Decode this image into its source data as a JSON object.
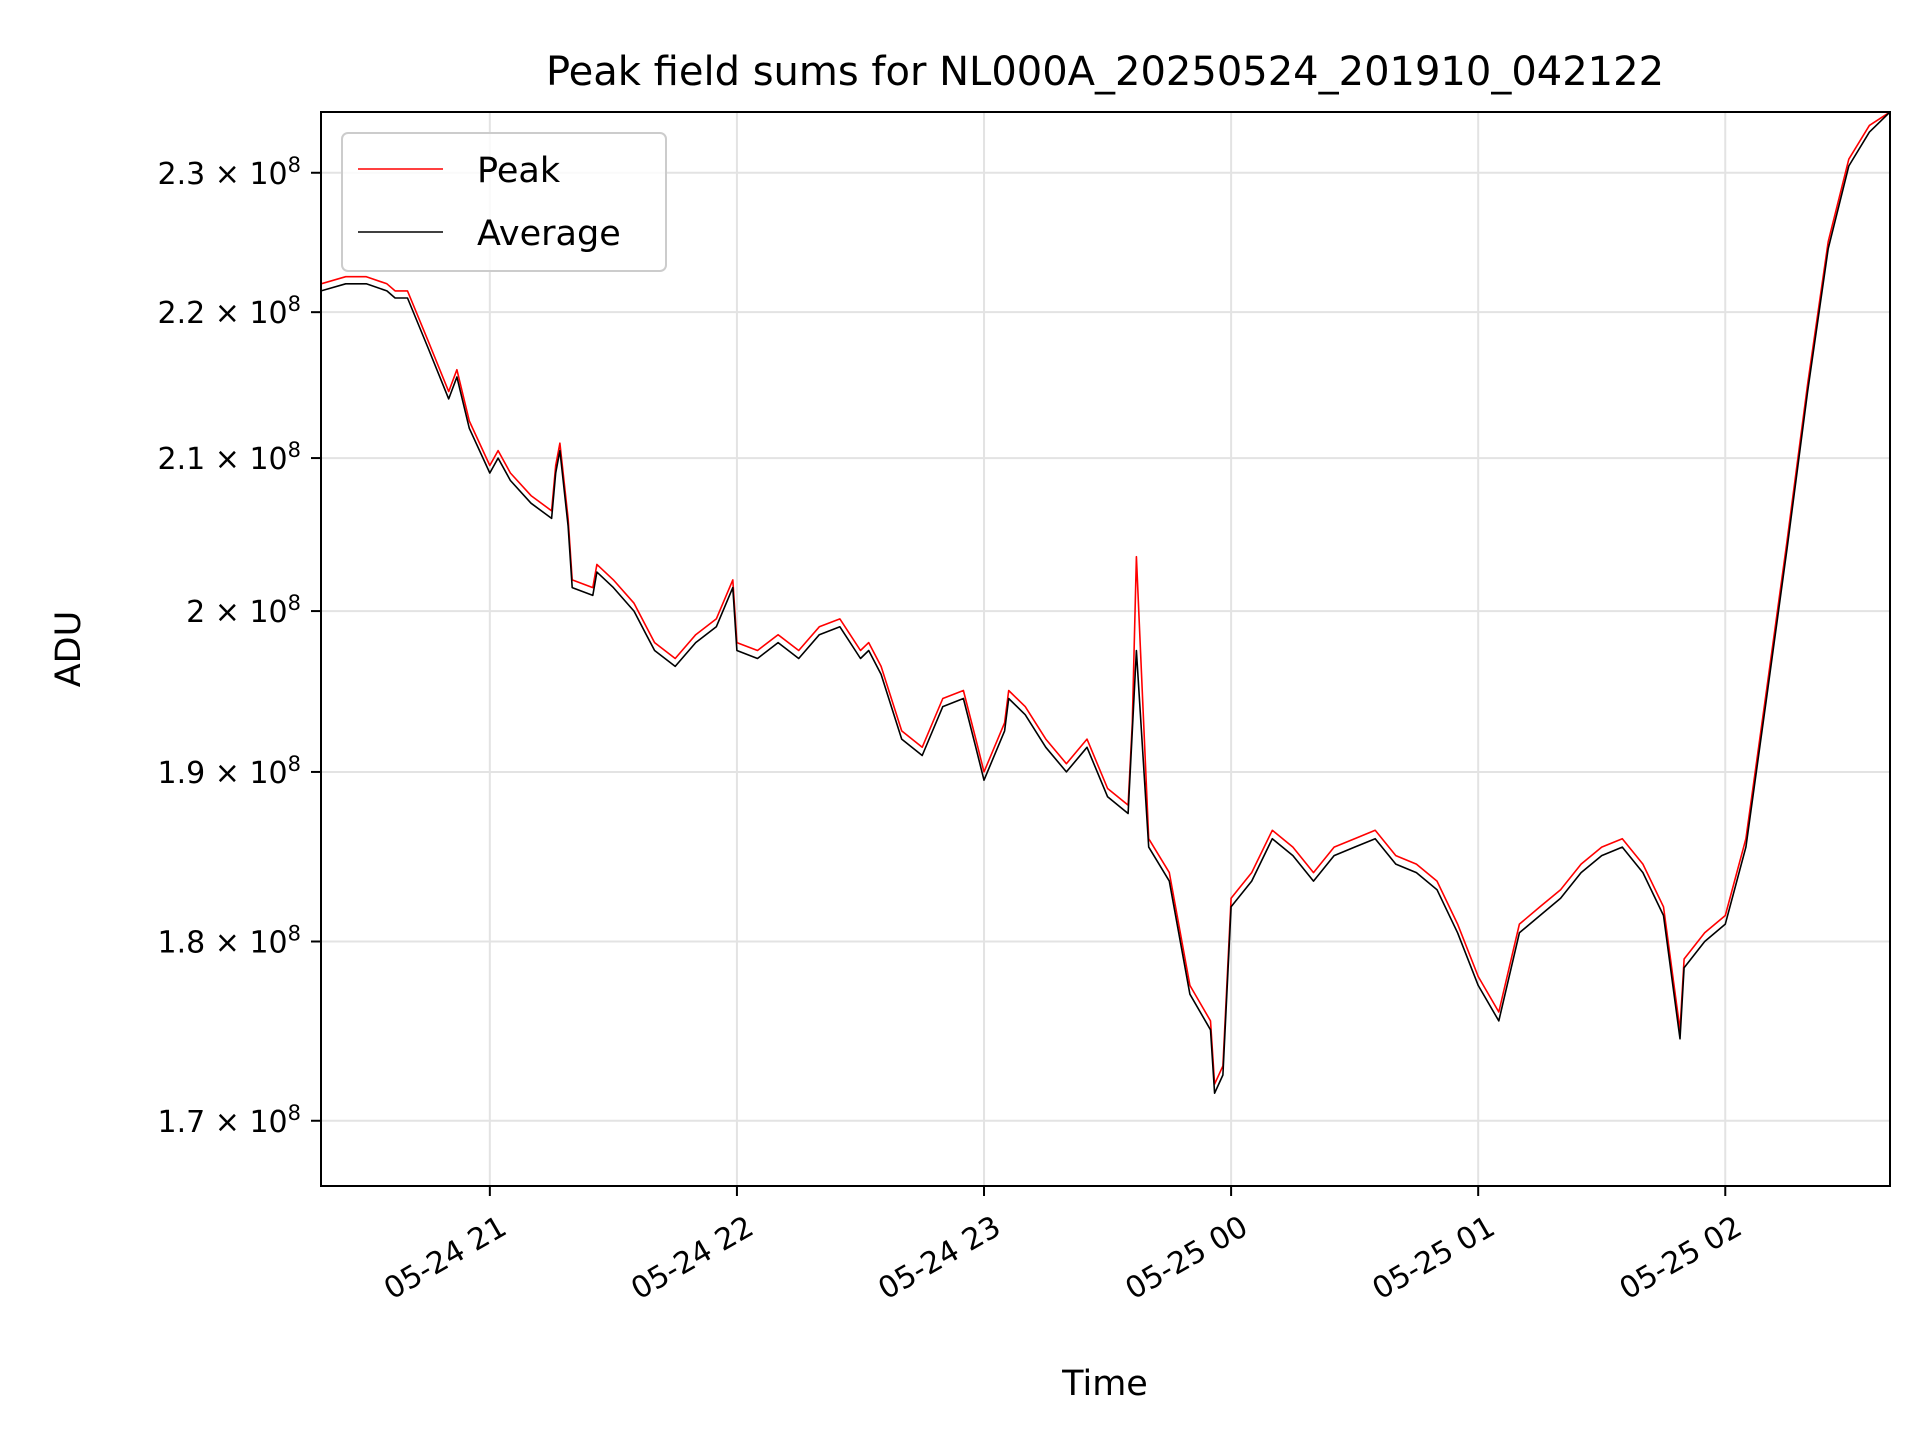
{
  "chart_data": {
    "type": "line",
    "title": "Peak field sums for NL000A_20250524_201910_042122",
    "xlabel": "Time",
    "ylabel": "ADU",
    "y_scale": "log",
    "grid": true,
    "legend_placement": "upper-left",
    "xlim": [
      "2025-05-24 20:19",
      "2025-05-25 02:40"
    ],
    "ylim": [
      166500000,
      234500000
    ],
    "x_ticks": [
      {
        "label": "05-24 21",
        "time": "2025-05-24 21:00"
      },
      {
        "label": "05-24 22",
        "time": "2025-05-24 22:00"
      },
      {
        "label": "05-24 23",
        "time": "2025-05-24 23:00"
      },
      {
        "label": "05-25 00",
        "time": "2025-05-25 00:00"
      },
      {
        "label": "05-25 01",
        "time": "2025-05-25 01:00"
      },
      {
        "label": "05-25 02",
        "time": "2025-05-25 02:00"
      }
    ],
    "y_ticks": [
      {
        "mantissa": "1.7",
        "exp": "8",
        "value": 170000000
      },
      {
        "mantissa": "1.8",
        "exp": "8",
        "value": 180000000
      },
      {
        "mantissa": "1.9",
        "exp": "8",
        "value": 190000000
      },
      {
        "mantissa": "2",
        "exp": "8",
        "value": 200000000
      },
      {
        "mantissa": "2.1",
        "exp": "8",
        "value": 210000000
      },
      {
        "mantissa": "2.2",
        "exp": "8",
        "value": 220000000
      },
      {
        "mantissa": "2.3",
        "exp": "8",
        "value": 230000000
      }
    ],
    "x": [
      "2025-05-24 20:19",
      "2025-05-24 20:25",
      "2025-05-24 20:30",
      "2025-05-24 20:35",
      "2025-05-24 20:37",
      "2025-05-24 20:40",
      "2025-05-24 20:45",
      "2025-05-24 20:50",
      "2025-05-24 20:52",
      "2025-05-24 20:55",
      "2025-05-24 21:00",
      "2025-05-24 21:02",
      "2025-05-24 21:05",
      "2025-05-24 21:10",
      "2025-05-24 21:15",
      "2025-05-24 21:16",
      "2025-05-24 21:17",
      "2025-05-24 21:19",
      "2025-05-24 21:20",
      "2025-05-24 21:25",
      "2025-05-24 21:26",
      "2025-05-24 21:30",
      "2025-05-24 21:35",
      "2025-05-24 21:38",
      "2025-05-24 21:40",
      "2025-05-24 21:45",
      "2025-05-24 21:50",
      "2025-05-24 21:55",
      "2025-05-24 21:59",
      "2025-05-24 22:00",
      "2025-05-24 22:05",
      "2025-05-24 22:10",
      "2025-05-24 22:15",
      "2025-05-24 22:20",
      "2025-05-24 22:25",
      "2025-05-24 22:30",
      "2025-05-24 22:32",
      "2025-05-24 22:35",
      "2025-05-24 22:40",
      "2025-05-24 22:45",
      "2025-05-24 22:50",
      "2025-05-24 22:55",
      "2025-05-24 22:58",
      "2025-05-24 23:00",
      "2025-05-24 23:05",
      "2025-05-24 23:06",
      "2025-05-24 23:10",
      "2025-05-24 23:15",
      "2025-05-24 23:20",
      "2025-05-24 23:25",
      "2025-05-24 23:30",
      "2025-05-24 23:35",
      "2025-05-24 23:36",
      "2025-05-24 23:37",
      "2025-05-24 23:40",
      "2025-05-24 23:45",
      "2025-05-24 23:50",
      "2025-05-24 23:55",
      "2025-05-24 23:56",
      "2025-05-24 23:58",
      "2025-05-25 00:00",
      "2025-05-25 00:05",
      "2025-05-25 00:10",
      "2025-05-25 00:15",
      "2025-05-25 00:20",
      "2025-05-25 00:25",
      "2025-05-25 00:30",
      "2025-05-25 00:35",
      "2025-05-25 00:40",
      "2025-05-25 00:45",
      "2025-05-25 00:50",
      "2025-05-25 00:55",
      "2025-05-25 01:00",
      "2025-05-25 01:05",
      "2025-05-25 01:10",
      "2025-05-25 01:15",
      "2025-05-25 01:20",
      "2025-05-25 01:25",
      "2025-05-25 01:30",
      "2025-05-25 01:35",
      "2025-05-25 01:40",
      "2025-05-25 01:45",
      "2025-05-25 01:49",
      "2025-05-25 01:50",
      "2025-05-25 01:55",
      "2025-05-25 02:00",
      "2025-05-25 02:05",
      "2025-05-25 02:10",
      "2025-05-25 02:15",
      "2025-05-25 02:20",
      "2025-05-25 02:25",
      "2025-05-25 02:30",
      "2025-05-25 02:35",
      "2025-05-25 02:40"
    ],
    "series": [
      {
        "name": "Peak",
        "color": "#ff0000",
        "values": [
          222000000,
          222500000,
          222500000,
          222000000,
          221500000,
          221500000,
          218000000,
          214500000,
          216000000,
          212500000,
          209500000,
          210500000,
          209000000,
          207500000,
          206500000,
          209500000,
          211000000,
          206000000,
          202000000,
          201500000,
          203000000,
          202000000,
          200500000,
          199000000,
          198000000,
          197000000,
          198500000,
          199500000,
          202000000,
          198000000,
          197500000,
          198500000,
          197500000,
          199000000,
          199500000,
          197500000,
          198000000,
          196500000,
          192500000,
          191500000,
          194500000,
          195000000,
          192000000,
          190000000,
          193000000,
          195000000,
          194000000,
          192000000,
          190500000,
          192000000,
          189000000,
          188000000,
          193000000,
          203500000,
          186000000,
          184000000,
          177500000,
          175500000,
          172000000,
          173000000,
          182500000,
          184000000,
          186500000,
          185500000,
          184000000,
          185500000,
          186000000,
          186500000,
          185000000,
          184500000,
          183500000,
          181000000,
          178000000,
          176000000,
          181000000,
          182000000,
          183000000,
          184500000,
          185500000,
          186000000,
          184500000,
          182000000,
          175000000,
          179000000,
          180500000,
          181500000,
          186000000,
          195000000,
          204500000,
          215000000,
          225000000,
          231000000,
          233500000,
          234500000
        ]
      },
      {
        "name": "Average",
        "color": "#000000",
        "values": [
          221500000,
          222000000,
          222000000,
          221500000,
          221000000,
          221000000,
          217500000,
          214000000,
          215500000,
          212000000,
          209000000,
          210000000,
          208500000,
          207000000,
          206000000,
          209000000,
          210500000,
          205500000,
          201500000,
          201000000,
          202500000,
          201500000,
          200000000,
          198500000,
          197500000,
          196500000,
          198000000,
          199000000,
          201500000,
          197500000,
          197000000,
          198000000,
          197000000,
          198500000,
          199000000,
          197000000,
          197500000,
          196000000,
          192000000,
          191000000,
          194000000,
          194500000,
          191500000,
          189500000,
          192500000,
          194500000,
          193500000,
          191500000,
          190000000,
          191500000,
          188500000,
          187500000,
          192500000,
          197500000,
          185500000,
          183500000,
          177000000,
          175000000,
          171500000,
          172500000,
          182000000,
          183500000,
          186000000,
          185000000,
          183500000,
          185000000,
          185500000,
          186000000,
          184500000,
          184000000,
          183000000,
          180500000,
          177500000,
          175500000,
          180500000,
          181500000,
          182500000,
          184000000,
          185000000,
          185500000,
          184000000,
          181500000,
          174500000,
          178500000,
          180000000,
          181000000,
          185500000,
          194500000,
          204000000,
          214500000,
          224500000,
          230500000,
          233000000,
          234500000
        ]
      }
    ]
  }
}
